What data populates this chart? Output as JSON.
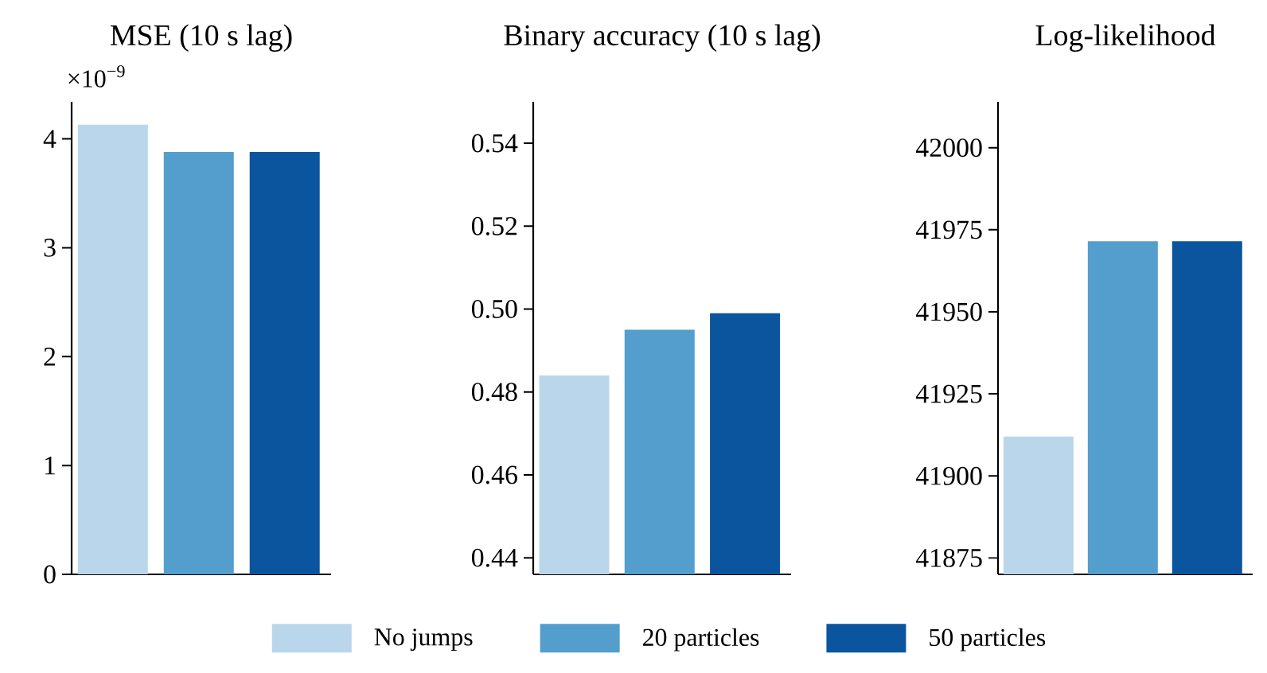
{
  "chart_data": [
    {
      "type": "bar",
      "title": "MSE (10 s lag)",
      "annotations": [
        "×10$^{−9}$"
      ],
      "categories": [
        null
      ],
      "ylim": [
        0,
        4.34
      ],
      "yticks": [
        0,
        1,
        2,
        3,
        4
      ],
      "legend": "bottom",
      "series": [
        {
          "name": "No jumps",
          "color": "#bad6eb",
          "values": [
            4.13
          ]
        },
        {
          "name": "20 particles",
          "color": "#539ecd",
          "values": [
            3.88
          ]
        },
        {
          "name": "50 particles",
          "color": "#0b559f",
          "values": [
            3.88
          ]
        }
      ]
    },
    {
      "type": "bar",
      "title": "Binary accuracy (10 s lag)",
      "categories": [
        null
      ],
      "ylim": [
        0.436,
        0.55
      ],
      "yticks": [
        0.44,
        0.46,
        0.48,
        {
          "value": 0.5,
          "label": "0.50"
        },
        0.52,
        0.54
      ],
      "series": [
        {
          "color": "#bad6eb",
          "values": [
            0.484
          ]
        },
        {
          "color": "#539ecd",
          "values": [
            0.495
          ]
        },
        {
          "color": "#0b559f",
          "values": [
            0.499
          ]
        }
      ]
    },
    {
      "type": "bar",
      "title": "Log-likelihood",
      "categories": [
        null
      ],
      "ylim": [
        41870,
        42014
      ],
      "yticks": [
        41875,
        41900,
        41925,
        41950,
        41975,
        42000
      ],
      "series": [
        {
          "color": "#bad6eb",
          "values": [
            41912
          ]
        },
        {
          "color": "#539ecd",
          "values": [
            41971.5
          ]
        },
        {
          "color": "#0b559f",
          "values": [
            41971.5
          ]
        }
      ]
    }
  ]
}
